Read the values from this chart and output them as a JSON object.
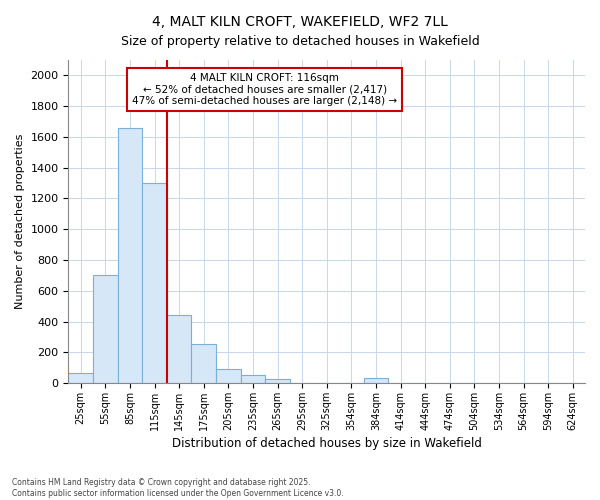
{
  "title_line1": "4, MALT KILN CROFT, WAKEFIELD, WF2 7LL",
  "title_line2": "Size of property relative to detached houses in Wakefield",
  "xlabel": "Distribution of detached houses by size in Wakefield",
  "ylabel": "Number of detached properties",
  "bar_labels": [
    "25sqm",
    "55sqm",
    "85sqm",
    "115sqm",
    "145sqm",
    "175sqm",
    "205sqm",
    "235sqm",
    "265sqm",
    "295sqm",
    "325sqm",
    "354sqm",
    "384sqm",
    "414sqm",
    "444sqm",
    "474sqm",
    "504sqm",
    "534sqm",
    "564sqm",
    "594sqm",
    "624sqm"
  ],
  "bar_values": [
    65,
    700,
    1660,
    1300,
    440,
    255,
    90,
    50,
    25,
    0,
    0,
    0,
    30,
    0,
    0,
    0,
    0,
    0,
    0,
    0,
    0
  ],
  "bar_color": "#d6e8f7",
  "bar_edgecolor": "#7ab0d8",
  "grid_color": "#c8d8ec",
  "background_color": "#ffffff",
  "annotation_line1": "4 MALT KILN CROFT: 116sqm",
  "annotation_line2": "← 52% of detached houses are smaller (2,417)",
  "annotation_line3": "47% of semi-detached houses are larger (2,148) →",
  "annotation_box_color": "#cc0000",
  "vline_color": "#cc0000",
  "vline_index": 3.5,
  "ylim": [
    0,
    2100
  ],
  "yticks": [
    0,
    200,
    400,
    600,
    800,
    1000,
    1200,
    1400,
    1600,
    1800,
    2000
  ],
  "footnote1": "Contains HM Land Registry data © Crown copyright and database right 2025.",
  "footnote2": "Contains public sector information licensed under the Open Government Licence v3.0."
}
